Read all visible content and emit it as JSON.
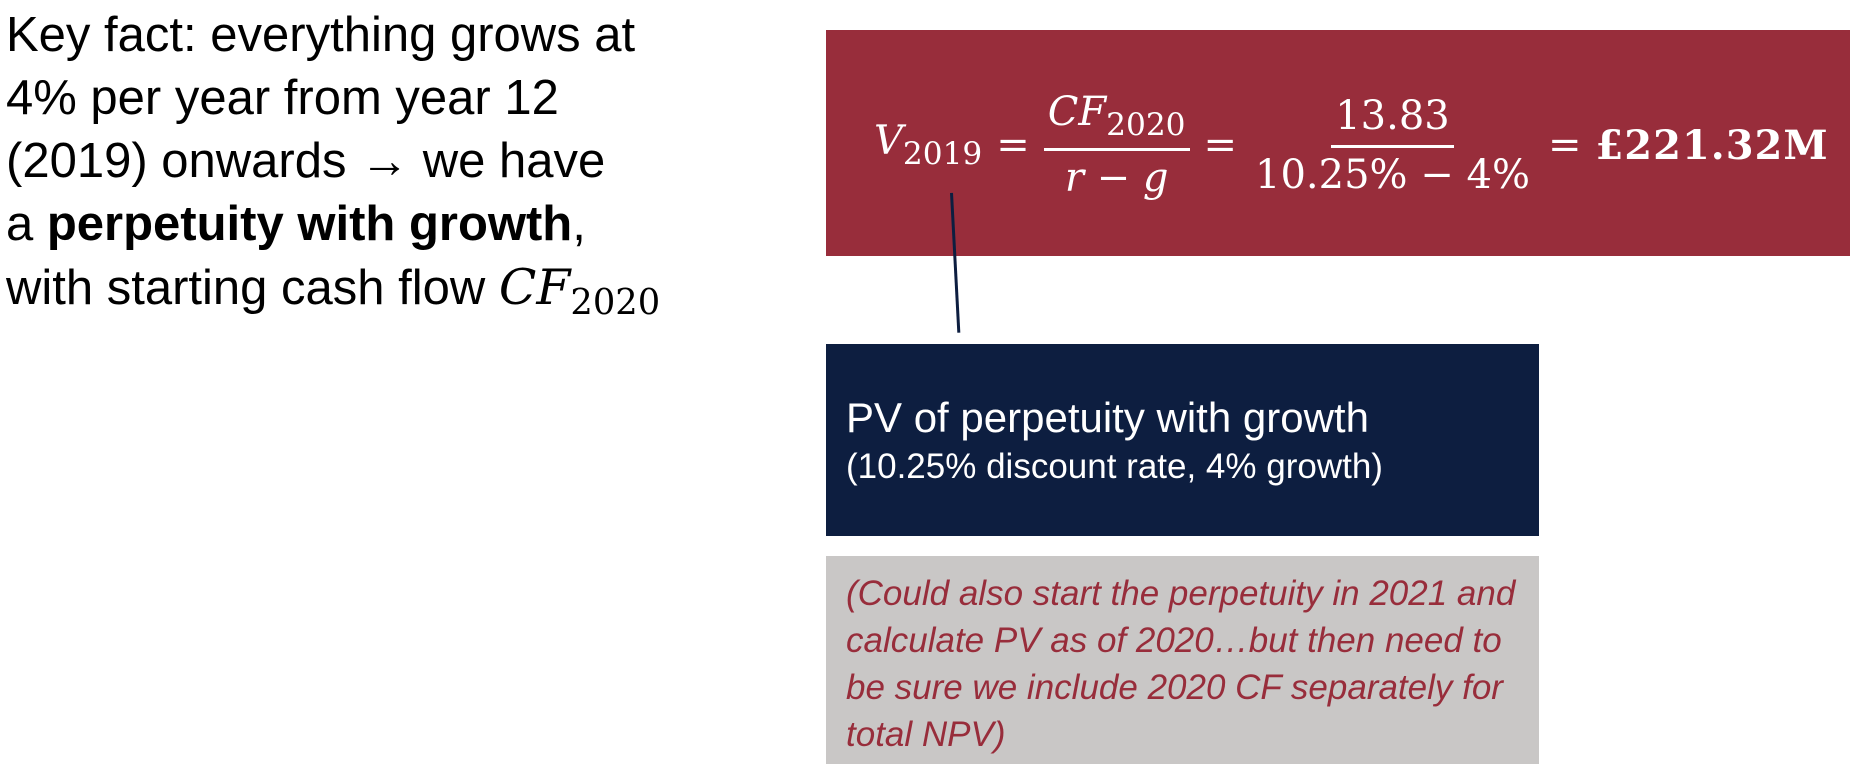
{
  "intro": {
    "line1": "Key fact: everything grows at",
    "line2": "4% per year from year 12",
    "line3_start": "(2019) onwards ",
    "arrow": "→",
    "line3_end": " we have",
    "line4_start": "a ",
    "line4_bold": "perpetuity with growth",
    "line4_end": ",",
    "line5_start": "with starting cash flow ",
    "math_var": "CF",
    "math_sub": "2020"
  },
  "formula": {
    "lhs_var": "V",
    "lhs_sub": "2019",
    "equals": "=",
    "num_var": "CF",
    "num_sub": "2020",
    "den": "r − g",
    "value_num": "13.83",
    "value_den": "10.25% − 4%",
    "result": "£221.32M"
  },
  "pv_box": {
    "title": "PV of perpetuity with growth",
    "subtitle": "(10.25% discount rate, 4% growth)"
  },
  "note": {
    "text": "(Could also start the perpetuity in 2021 and calculate PV as of 2020…but then need to be sure we include 2020 CF separately for total NPV)"
  },
  "colors": {
    "maroon": "#982d3b",
    "navy": "#0d1e40",
    "gray": "#c9c7c6"
  }
}
